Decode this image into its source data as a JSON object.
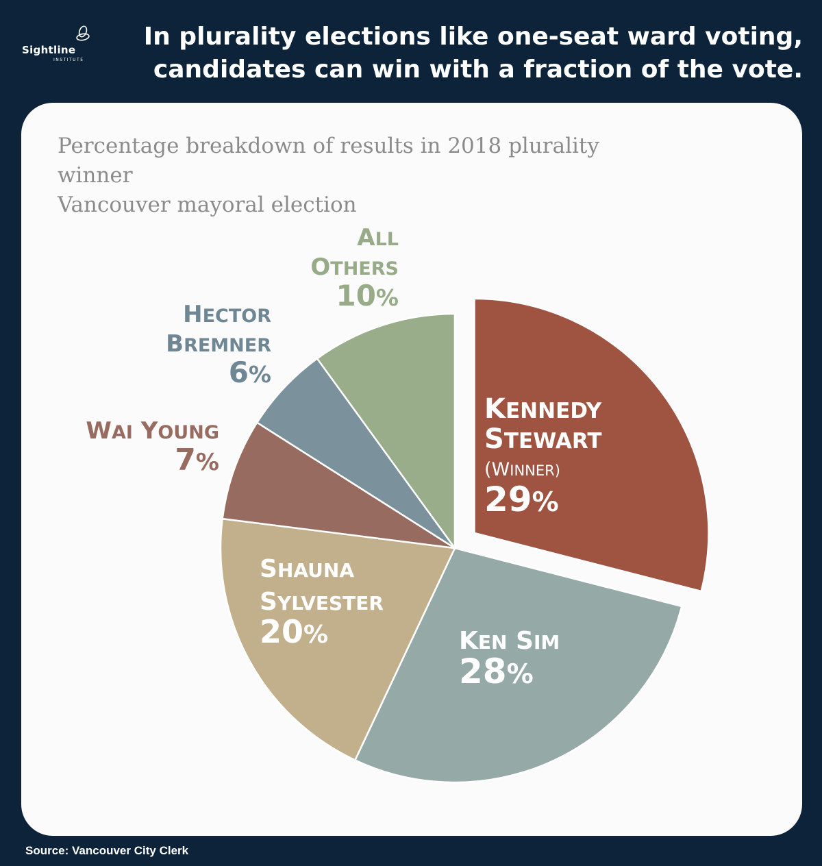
{
  "header": {
    "logo_name": "Sightline",
    "logo_sub": "INSTITUTE",
    "headline_line1": "In plurality elections like one-seat ward voting,",
    "headline_line2": "candidates can win with a fraction of the vote."
  },
  "subtitle_line1": "Percentage breakdown of results in 2018 plurality winner",
  "subtitle_line2": "Vancouver mayoral election",
  "source": "Source: Vancouver City Clerk",
  "chart_data": {
    "type": "pie",
    "title": "",
    "slices": [
      {
        "label_lines": [
          "Kennedy",
          "Stewart",
          "(Winner)"
        ],
        "value": 29,
        "value_label": "29%",
        "color": "#9e5440",
        "text_color": "#ffffff",
        "exploded": true
      },
      {
        "label_lines": [
          "Ken Sim"
        ],
        "value": 28,
        "value_label": "28%",
        "color": "#95aaa7",
        "text_color": "#ffffff",
        "exploded": false
      },
      {
        "label_lines": [
          "Shauna",
          "Sylvester"
        ],
        "value": 20,
        "value_label": "20%",
        "color": "#c2b08d",
        "text_color": "#ffffff",
        "exploded": false
      },
      {
        "label_lines": [
          "Wai Young"
        ],
        "value": 7,
        "value_label": "7%",
        "color": "#976b60",
        "text_color": "#976b60",
        "exploded": false
      },
      {
        "label_lines": [
          "Hector",
          "Bremner"
        ],
        "value": 6,
        "value_label": "6%",
        "color": "#7b919c",
        "text_color": "#6f8795",
        "exploded": false
      },
      {
        "label_lines": [
          "All",
          "Others"
        ],
        "value": 10,
        "value_label": "10%",
        "color": "#9aad8b",
        "text_color": "#98ab89",
        "exploded": false
      }
    ]
  }
}
